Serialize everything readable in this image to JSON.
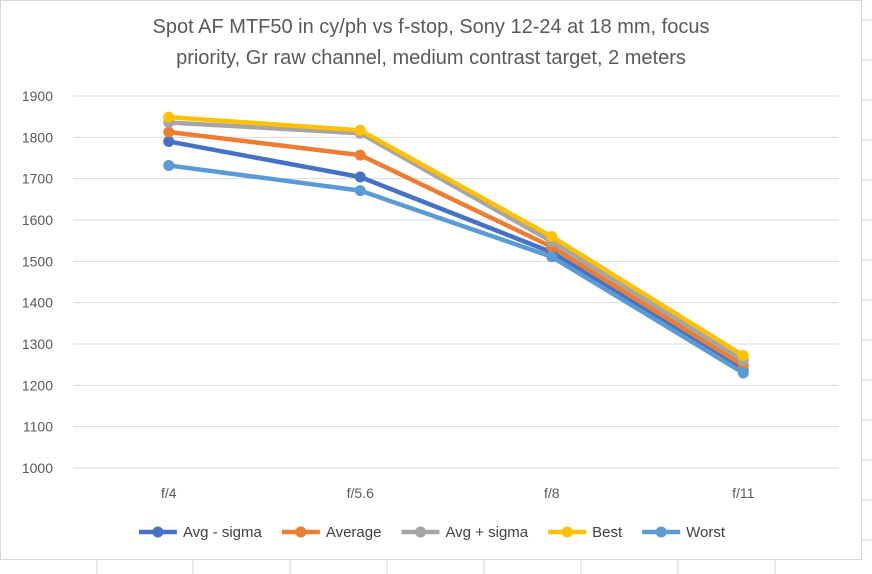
{
  "chart_data": {
    "type": "line",
    "title_lines": [
      "Spot AF MTF50 in cy/ph vs f-stop, Sony 12-24 at 18 mm, focus",
      "priority, Gr raw channel, medium contrast target, 2 meters"
    ],
    "categories": [
      "f/4",
      "f/5.6",
      "f/8",
      "f/11"
    ],
    "ylim": [
      1000,
      1900
    ],
    "yticks": [
      1000,
      1100,
      1200,
      1300,
      1400,
      1500,
      1600,
      1700,
      1800,
      1900
    ],
    "grid": true,
    "legend_position": "bottom",
    "series": [
      {
        "name": "Avg - sigma",
        "color": "#4472C4",
        "values": [
          1790,
          1704,
          1522,
          1236
        ]
      },
      {
        "name": "Average",
        "color": "#ED7D31",
        "values": [
          1813,
          1757,
          1535,
          1248
        ]
      },
      {
        "name": "Avg + sigma",
        "color": "#A5A5A5",
        "values": [
          1836,
          1810,
          1548,
          1260
        ]
      },
      {
        "name": "Best",
        "color": "#FFC000",
        "values": [
          1849,
          1817,
          1560,
          1272
        ]
      },
      {
        "name": "Worst",
        "color": "#5B9BD5",
        "values": [
          1732,
          1671,
          1511,
          1230
        ]
      }
    ]
  }
}
